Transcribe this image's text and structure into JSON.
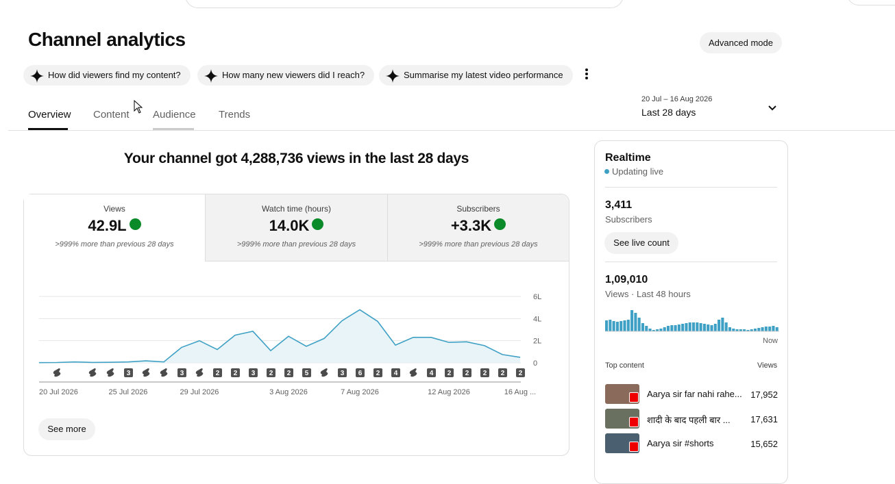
{
  "header": {
    "title": "Channel analytics",
    "advanced_mode": "Advanced mode"
  },
  "suggestions": [
    "How did viewers find my content?",
    "How many new viewers did I reach?",
    "Summarise my latest video performance"
  ],
  "tabs": [
    "Overview",
    "Content",
    "Audience",
    "Trends"
  ],
  "date_range": {
    "dates": "20 Jul – 16 Aug 2026",
    "period": "Last 28 days"
  },
  "headline": "Your channel got 4,288,736 views in the last 28 days",
  "metrics": [
    {
      "label": "Views",
      "value": "42.9L",
      "change": ">999% more than previous 28 days"
    },
    {
      "label": "Watch time (hours)",
      "value": "14.0K",
      "change": ">999% more than previous 28 days"
    },
    {
      "label": "Subscribers",
      "value": "+3.3K",
      "change": ">999% more than previous 28 days"
    }
  ],
  "chart_data": {
    "type": "line",
    "categories": [
      "20 Jul 2026",
      null,
      null,
      null,
      null,
      "25 Jul 2026",
      null,
      null,
      null,
      "29 Jul 2026",
      null,
      null,
      null,
      null,
      "3 Aug 2026",
      null,
      null,
      null,
      "7 Aug 2026",
      null,
      null,
      null,
      null,
      "12 Aug 2026",
      null,
      null,
      null,
      "16 Aug ..."
    ],
    "values": [
      2000,
      3000,
      8000,
      4000,
      5000,
      8000,
      18000,
      8000,
      140000,
      200000,
      120000,
      250000,
      285000,
      110000,
      240000,
      150000,
      220000,
      380000,
      480000,
      375000,
      160000,
      230000,
      230000,
      185000,
      190000,
      155000,
      75000,
      50000
    ],
    "color": "#3ea0c4",
    "ylim": [
      0,
      600000
    ],
    "yticks": [
      {
        "value": 0,
        "label": "0"
      },
      {
        "value": 200000,
        "label": "2L"
      },
      {
        "value": 400000,
        "label": "4L"
      },
      {
        "value": 600000,
        "label": "6L"
      }
    ],
    "grid": true,
    "uploads": [
      null,
      1,
      null,
      1,
      1,
      3,
      1,
      1,
      3,
      1,
      2,
      2,
      3,
      2,
      2,
      5,
      1,
      3,
      6,
      2,
      4,
      1,
      4,
      2,
      2,
      2,
      2,
      2
    ]
  },
  "see_more": "See more",
  "realtime": {
    "title": "Realtime",
    "status": "Updating live",
    "subscribers": {
      "value": "3,411",
      "label": "Subscribers",
      "button": "See live count"
    },
    "views": {
      "value": "1,09,010",
      "label": "Views · Last 48 hours"
    },
    "bars": [
      16,
      17,
      15,
      14,
      15,
      16,
      17,
      31,
      27,
      20,
      12,
      8,
      4,
      2,
      3,
      4,
      6,
      8,
      9,
      9,
      10,
      11,
      12,
      13,
      13,
      13,
      12,
      11,
      10,
      9,
      11,
      17,
      20,
      13,
      6,
      4,
      3,
      3,
      3,
      2,
      3,
      4,
      5,
      6,
      7,
      7,
      8,
      6
    ],
    "now": "Now",
    "top_content": {
      "label": "Top content",
      "views_label": "Views",
      "rows": [
        {
          "title": "Aarya sir far nahi rahe...",
          "views": "17,952"
        },
        {
          "title": "शादी के बाद पहली बार ...",
          "views": "17,631"
        },
        {
          "title": "Aarya sir #shorts",
          "views": "15,652"
        }
      ]
    }
  }
}
